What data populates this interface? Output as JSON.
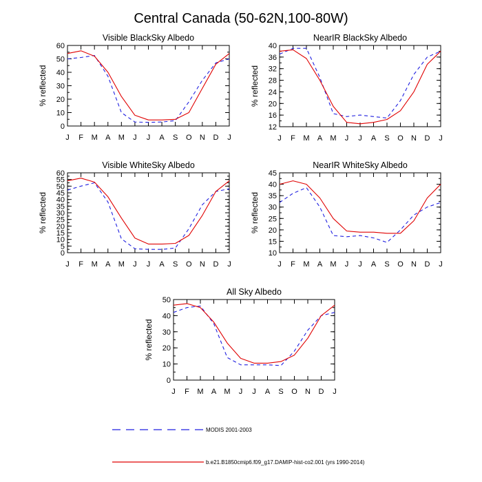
{
  "title": "Central Canada (50-62N,100-80W)",
  "legend": [
    {
      "label": "MODIS 2001-2003",
      "color": "#1f1fe0",
      "dash": "dashed"
    },
    {
      "label": "b.e21.B1850cmip6.f09_g17.DAMIP-hist-co2.001 (yrs 1990-2014)",
      "color": "#e00000",
      "dash": "solid"
    }
  ],
  "chart_data": [
    {
      "type": "line",
      "title": "Visible BlackSky Albedo",
      "xlabel": "",
      "ylabel": "% reflected",
      "categories": [
        "J",
        "F",
        "M",
        "A",
        "M",
        "J",
        "J",
        "A",
        "S",
        "O",
        "N",
        "D",
        "J"
      ],
      "ylim": [
        0,
        60
      ],
      "yticks": [
        0,
        10,
        20,
        30,
        40,
        50,
        60
      ],
      "series": [
        {
          "name": "MODIS 2001-2003",
          "values": [
            50,
            51,
            52.5,
            37,
            10,
            3,
            2.7,
            3,
            4,
            18,
            34,
            47,
            50
          ]
        },
        {
          "name": "b.e21.B1850cmip6.f09_g17.DAMIP-hist-co2.001 (yrs 1990-2014)",
          "values": [
            54,
            56,
            52,
            40,
            22,
            8,
            4.5,
            4.5,
            5,
            10,
            28,
            46,
            54
          ]
        }
      ]
    },
    {
      "type": "line",
      "title": "NearIR BlackSky Albedo",
      "xlabel": "",
      "ylabel": "% reflected",
      "categories": [
        "J",
        "F",
        "M",
        "A",
        "M",
        "J",
        "J",
        "A",
        "S",
        "O",
        "N",
        "D",
        "J"
      ],
      "ylim": [
        12,
        40
      ],
      "yticks": [
        12,
        16,
        20,
        24,
        28,
        32,
        36,
        40
      ],
      "series": [
        {
          "name": "MODIS 2001-2003",
          "values": [
            37,
            39,
            39,
            29,
            16.5,
            15.5,
            16,
            15.5,
            15,
            21,
            30,
            36,
            38
          ]
        },
        {
          "name": "b.e21.B1850cmip6.f09_g17.DAMIP-hist-co2.001 (yrs 1990-2014)",
          "values": [
            38,
            38.5,
            35.5,
            28,
            19,
            13.5,
            13,
            13.5,
            14.5,
            17.5,
            24,
            33.5,
            38
          ]
        }
      ]
    },
    {
      "type": "line",
      "title": "Visible WhiteSky Albedo",
      "xlabel": "",
      "ylabel": "% reflected",
      "categories": [
        "J",
        "F",
        "M",
        "A",
        "M",
        "J",
        "J",
        "A",
        "S",
        "O",
        "N",
        "D",
        "J"
      ],
      "ylim": [
        0,
        60
      ],
      "yticks": [
        0,
        5,
        10,
        15,
        20,
        25,
        30,
        35,
        40,
        45,
        50,
        55,
        60
      ],
      "series": [
        {
          "name": "MODIS 2001-2003",
          "values": [
            47,
            50,
            52.5,
            38,
            10.5,
            3,
            2.5,
            2.5,
            3.5,
            18,
            36,
            46,
            48
          ]
        },
        {
          "name": "b.e21.B1850cmip6.f09_g17.DAMIP-hist-co2.001 (yrs 1990-2014)",
          "values": [
            54,
            56,
            53,
            42,
            26,
            11,
            6.5,
            6.5,
            7,
            13,
            28,
            46,
            54
          ]
        }
      ]
    },
    {
      "type": "line",
      "title": "NearIR WhiteSky Albedo",
      "xlabel": "",
      "ylabel": "% reflected",
      "categories": [
        "J",
        "F",
        "M",
        "A",
        "M",
        "J",
        "J",
        "A",
        "S",
        "O",
        "N",
        "D",
        "J"
      ],
      "ylim": [
        10,
        45
      ],
      "yticks": [
        10,
        15,
        20,
        25,
        30,
        35,
        40,
        45
      ],
      "series": [
        {
          "name": "MODIS 2001-2003",
          "values": [
            32,
            36,
            38.5,
            30,
            17.5,
            17,
            17.5,
            16.5,
            14.5,
            20,
            26.5,
            30,
            32
          ]
        },
        {
          "name": "b.e21.B1850cmip6.f09_g17.DAMIP-hist-co2.001 (yrs 1990-2014)",
          "values": [
            40,
            41.5,
            40,
            34,
            25,
            19.5,
            19,
            19,
            18.5,
            18.5,
            24,
            34,
            40
          ]
        }
      ]
    },
    {
      "type": "line",
      "title": "All Sky Albedo",
      "xlabel": "",
      "ylabel": "% reflected",
      "categories": [
        "J",
        "F",
        "M",
        "A",
        "M",
        "J",
        "J",
        "A",
        "S",
        "O",
        "N",
        "D",
        "J"
      ],
      "ylim": [
        0,
        50
      ],
      "yticks": [
        0,
        10,
        20,
        30,
        40,
        50
      ],
      "series": [
        {
          "name": "MODIS 2001-2003",
          "values": [
            42,
            45,
            46,
            35,
            14,
            9.5,
            9.5,
            9.5,
            9,
            18,
            31,
            40,
            42
          ]
        },
        {
          "name": "b.e21.B1850cmip6.f09_g17.DAMIP-hist-co2.001 (yrs 1990-2014)",
          "values": [
            46.5,
            47.5,
            45,
            36,
            23,
            13.5,
            10.5,
            10.5,
            11.5,
            15.5,
            26,
            40,
            46.5
          ]
        }
      ]
    }
  ]
}
